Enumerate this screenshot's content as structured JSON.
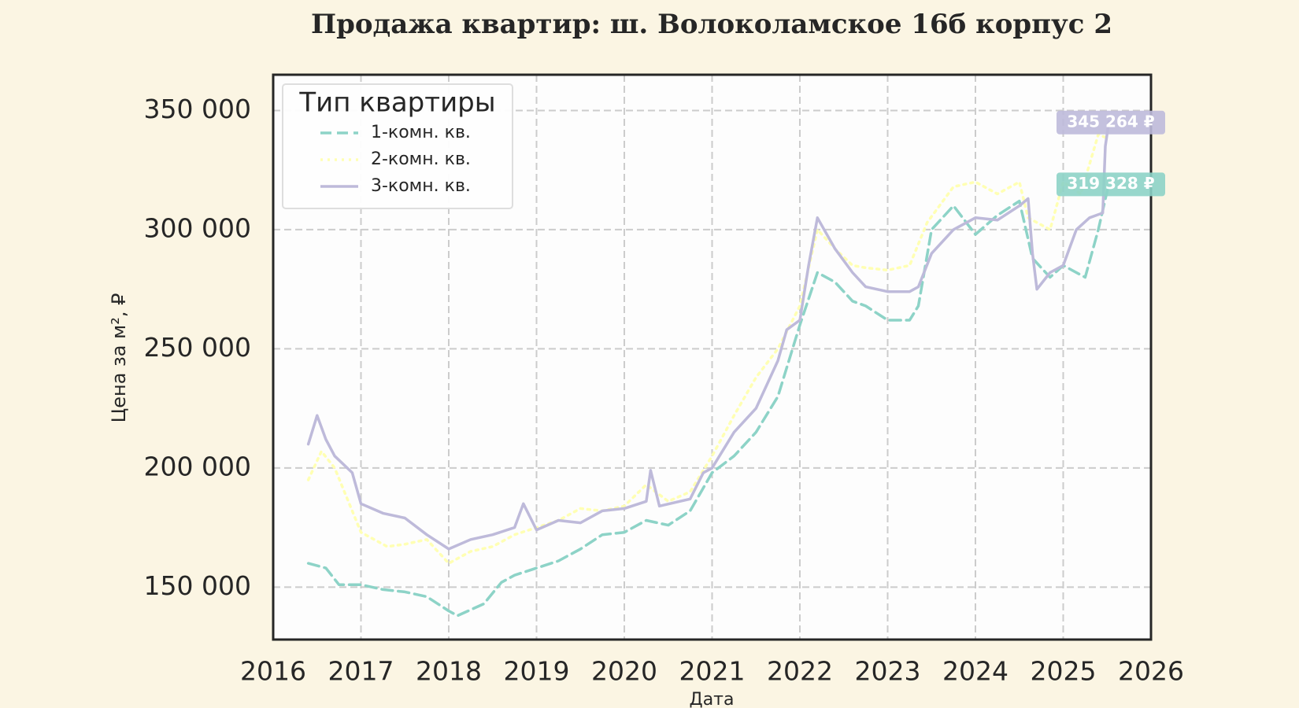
{
  "chart_data": {
    "type": "line",
    "title": "Продажа квартир: ш. Волоколамское 16б корпус 2",
    "x_label": "Дата",
    "y_label": "Цена за м², ₽",
    "legend_title": "Тип квартиры",
    "legend": "upper left",
    "grid": true,
    "xlim": [
      2016,
      2026
    ],
    "xticks": [
      2016,
      2017,
      2018,
      2019,
      2020,
      2021,
      2022,
      2023,
      2024,
      2025,
      2026
    ],
    "ylim": [
      128000,
      365000
    ],
    "yticks": [
      {
        "value": 150000,
        "label": "150 000"
      },
      {
        "value": 200000,
        "label": "200 000"
      },
      {
        "value": 250000,
        "label": "250 000"
      },
      {
        "value": 300000,
        "label": "300 000"
      },
      {
        "value": 350000,
        "label": "350 000"
      }
    ],
    "series": [
      {
        "name": "1-комн. кв.",
        "color": "#8dd3c7",
        "dash": "dashed",
        "x": [
          2016.4,
          2016.6,
          2016.75,
          2017.0,
          2017.25,
          2017.5,
          2017.75,
          2018.0,
          2018.1,
          2018.4,
          2018.6,
          2018.75,
          2019.0,
          2019.25,
          2019.5,
          2019.75,
          2020.0,
          2020.25,
          2020.5,
          2020.75,
          2021.0,
          2021.25,
          2021.5,
          2021.75,
          2022.0,
          2022.2,
          2022.4,
          2022.6,
          2022.75,
          2023.0,
          2023.25,
          2023.35,
          2023.5,
          2023.75,
          2024.0,
          2024.25,
          2024.5,
          2024.65,
          2024.85,
          2025.0,
          2025.25,
          2025.4,
          2025.52
        ],
        "values": [
          160000,
          158000,
          151000,
          151000,
          149000,
          148000,
          146000,
          140000,
          138000,
          143000,
          152000,
          155000,
          158000,
          161000,
          166000,
          172000,
          173000,
          178000,
          176000,
          182000,
          198000,
          205000,
          215000,
          230000,
          260000,
          282000,
          278000,
          270000,
          268000,
          262000,
          262000,
          268000,
          300000,
          310000,
          298000,
          306000,
          312000,
          288000,
          280000,
          285000,
          280000,
          300000,
          319328
        ]
      },
      {
        "name": "2-комн. кв.",
        "color": "#ffffb3",
        "dash": "dotted",
        "x": [
          2016.4,
          2016.55,
          2016.7,
          2016.9,
          2017.0,
          2017.3,
          2017.5,
          2017.75,
          2018.0,
          2018.25,
          2018.5,
          2018.75,
          2019.0,
          2019.25,
          2019.5,
          2019.75,
          2020.0,
          2020.25,
          2020.5,
          2020.75,
          2021.0,
          2021.25,
          2021.5,
          2021.75,
          2022.0,
          2022.2,
          2022.4,
          2022.6,
          2022.75,
          2023.0,
          2023.25,
          2023.45,
          2023.75,
          2024.0,
          2024.25,
          2024.5,
          2024.6,
          2024.85,
          2025.0,
          2025.2,
          2025.4,
          2025.52
        ],
        "values": [
          195000,
          207000,
          200000,
          182000,
          173000,
          167000,
          168000,
          170000,
          160000,
          165000,
          167000,
          172000,
          175000,
          178000,
          183000,
          182000,
          184000,
          193000,
          186000,
          190000,
          205000,
          222000,
          238000,
          250000,
          268000,
          300000,
          292000,
          285000,
          284000,
          283000,
          285000,
          303000,
          318000,
          320000,
          315000,
          320000,
          305000,
          300000,
          320000,
          315000,
          340000,
          338000
        ]
      },
      {
        "name": "3-комн. кв.",
        "color": "#bebada",
        "dash": "solid",
        "x": [
          2016.4,
          2016.5,
          2016.6,
          2016.7,
          2016.9,
          2017.0,
          2017.25,
          2017.5,
          2017.75,
          2018.0,
          2018.25,
          2018.5,
          2018.75,
          2018.85,
          2019.0,
          2019.25,
          2019.5,
          2019.75,
          2020.0,
          2020.25,
          2020.3,
          2020.4,
          2020.75,
          2020.9,
          2021.0,
          2021.25,
          2021.5,
          2021.75,
          2021.85,
          2022.0,
          2022.1,
          2022.2,
          2022.4,
          2022.6,
          2022.75,
          2023.0,
          2023.25,
          2023.35,
          2023.5,
          2023.75,
          2024.0,
          2024.25,
          2024.5,
          2024.6,
          2024.65,
          2024.7,
          2024.85,
          2025.0,
          2025.15,
          2025.3,
          2025.45,
          2025.48,
          2025.52
        ],
        "values": [
          210000,
          222000,
          212000,
          205000,
          198000,
          185000,
          181000,
          179000,
          172000,
          166000,
          170000,
          172000,
          175000,
          185000,
          174000,
          178000,
          177000,
          182000,
          183000,
          186000,
          199000,
          184000,
          187000,
          198000,
          200000,
          215000,
          225000,
          245000,
          258000,
          262000,
          285000,
          305000,
          292000,
          282000,
          276000,
          274000,
          274000,
          276000,
          290000,
          300000,
          305000,
          304000,
          310000,
          313000,
          290000,
          275000,
          282000,
          285000,
          300000,
          305000,
          307000,
          335000,
          345264
        ]
      }
    ],
    "annotations": [
      {
        "label": "345 264 ₽",
        "value": 345264,
        "color": "#bebada"
      },
      {
        "label": "319 328 ₽",
        "value": 319328,
        "color": "#8dd3c7"
      }
    ]
  }
}
